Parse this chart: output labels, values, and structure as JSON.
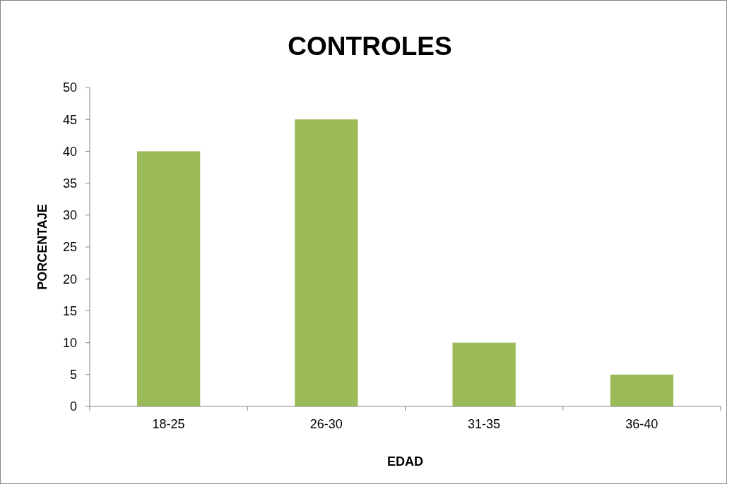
{
  "chart_data": {
    "type": "bar",
    "title": "CONTROLES",
    "xlabel": "EDAD",
    "ylabel": "PORCENTAJE",
    "categories": [
      "18-25",
      "26-30",
      "31-35",
      "36-40"
    ],
    "values": [
      40,
      45,
      10,
      5
    ],
    "color": "#9bbb59",
    "ylim": [
      0,
      50
    ],
    "yticks": [
      0,
      5,
      10,
      15,
      20,
      25,
      30,
      35,
      40,
      45,
      50
    ],
    "grid": false
  }
}
